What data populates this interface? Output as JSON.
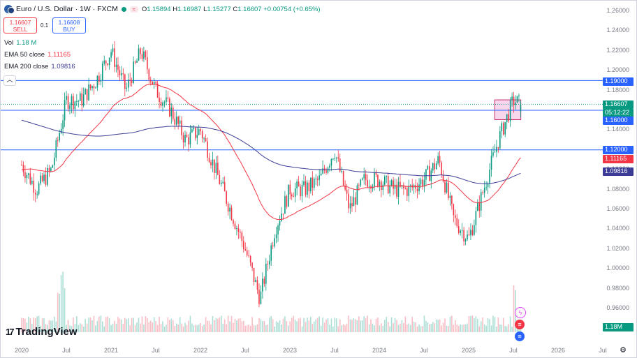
{
  "header": {
    "symbol": "Euro / U.S. Dollar · 1W · FXCM",
    "open_label": "O",
    "open": "1.15894",
    "high_label": "H",
    "high": "1.16987",
    "low_label": "L",
    "low": "1.15277",
    "close_label": "C",
    "close": "1.16607",
    "change": "+0.00754 (+0.65%)"
  },
  "trade": {
    "sell_price": "1.16607",
    "sell_label": "SELL",
    "spread": "0.1",
    "buy_price": "1.16608",
    "buy_label": "BUY"
  },
  "indicators": {
    "vol_label": "Vol",
    "vol_value": "1.18 M",
    "ema50_label": "EMA 50 close",
    "ema50_value": "1.11165",
    "ema200_label": "EMA 200 close",
    "ema200_value": "1.09816"
  },
  "colors": {
    "up": "#089981",
    "down": "#f23645",
    "ema50": "#f23645",
    "ema200": "#3c3c96",
    "hline": "#2962ff",
    "zone": "#e991c8"
  },
  "price_axis": {
    "ticks": [
      "1.26000",
      "1.24000",
      "1.22000",
      "1.20000",
      "1.18000",
      "1.16000",
      "1.14000",
      "1.12000",
      "1.10000",
      "1.08000",
      "1.06000",
      "1.04000",
      "1.02000",
      "1.00000",
      "0.98000",
      "0.96000"
    ],
    "tags": {
      "level_1190": "1.19000",
      "current": "1.16607",
      "countdown": "05:12:22",
      "level_1160": "1.16000",
      "level_1120": "1.12000",
      "ema50": "1.11165",
      "ema200": "1.09816",
      "volume": "1.18M"
    }
  },
  "time_axis": [
    "2020",
    "Jul",
    "2021",
    "Jul",
    "2022",
    "Jul",
    "2023",
    "Jul",
    "2024",
    "Jul",
    "2025",
    "Jul",
    "2026",
    "Jul"
  ],
  "branding": {
    "name": "TradingView",
    "mark": "17"
  },
  "chart_data": {
    "type": "candlestick",
    "title": "Euro / U.S. Dollar · 1W · FXCM",
    "ylim": [
      0.955,
      1.265
    ],
    "horizontal_levels": [
      1.19,
      1.16,
      1.12
    ],
    "zone": {
      "start": "2025-04",
      "end": "2025-07",
      "top": 1.1705,
      "bottom": 1.1505
    },
    "closes_approx": [
      {
        "date": "2020-01",
        "close": 1.105
      },
      {
        "date": "2020-03",
        "close": 1.08
      },
      {
        "date": "2020-05",
        "close": 1.1
      },
      {
        "date": "2020-07",
        "close": 1.17
      },
      {
        "date": "2020-09",
        "close": 1.17
      },
      {
        "date": "2020-11",
        "close": 1.19
      },
      {
        "date": "2021-01",
        "close": 1.22
      },
      {
        "date": "2021-03",
        "close": 1.18
      },
      {
        "date": "2021-05",
        "close": 1.22
      },
      {
        "date": "2021-07",
        "close": 1.18
      },
      {
        "date": "2021-09",
        "close": 1.16
      },
      {
        "date": "2021-11",
        "close": 1.13
      },
      {
        "date": "2022-01",
        "close": 1.14
      },
      {
        "date": "2022-03",
        "close": 1.1
      },
      {
        "date": "2022-05",
        "close": 1.06
      },
      {
        "date": "2022-07",
        "close": 1.02
      },
      {
        "date": "2022-09",
        "close": 0.97
      },
      {
        "date": "2022-11",
        "close": 1.04
      },
      {
        "date": "2023-01",
        "close": 1.08
      },
      {
        "date": "2023-03",
        "close": 1.08
      },
      {
        "date": "2023-05",
        "close": 1.09
      },
      {
        "date": "2023-07",
        "close": 1.12
      },
      {
        "date": "2023-09",
        "close": 1.06
      },
      {
        "date": "2023-11",
        "close": 1.09
      },
      {
        "date": "2024-01",
        "close": 1.09
      },
      {
        "date": "2024-03",
        "close": 1.08
      },
      {
        "date": "2024-05",
        "close": 1.08
      },
      {
        "date": "2024-07",
        "close": 1.09
      },
      {
        "date": "2024-09",
        "close": 1.11
      },
      {
        "date": "2024-11",
        "close": 1.05
      },
      {
        "date": "2025-01",
        "close": 1.03
      },
      {
        "date": "2025-03",
        "close": 1.08
      },
      {
        "date": "2025-05",
        "close": 1.13
      },
      {
        "date": "2025-07",
        "close": 1.17
      },
      {
        "date": "2025-07-end",
        "close": 1.16607
      }
    ],
    "ema50_last": 1.11165,
    "ema200_last": 1.09816,
    "volume_last": "1.18M"
  }
}
